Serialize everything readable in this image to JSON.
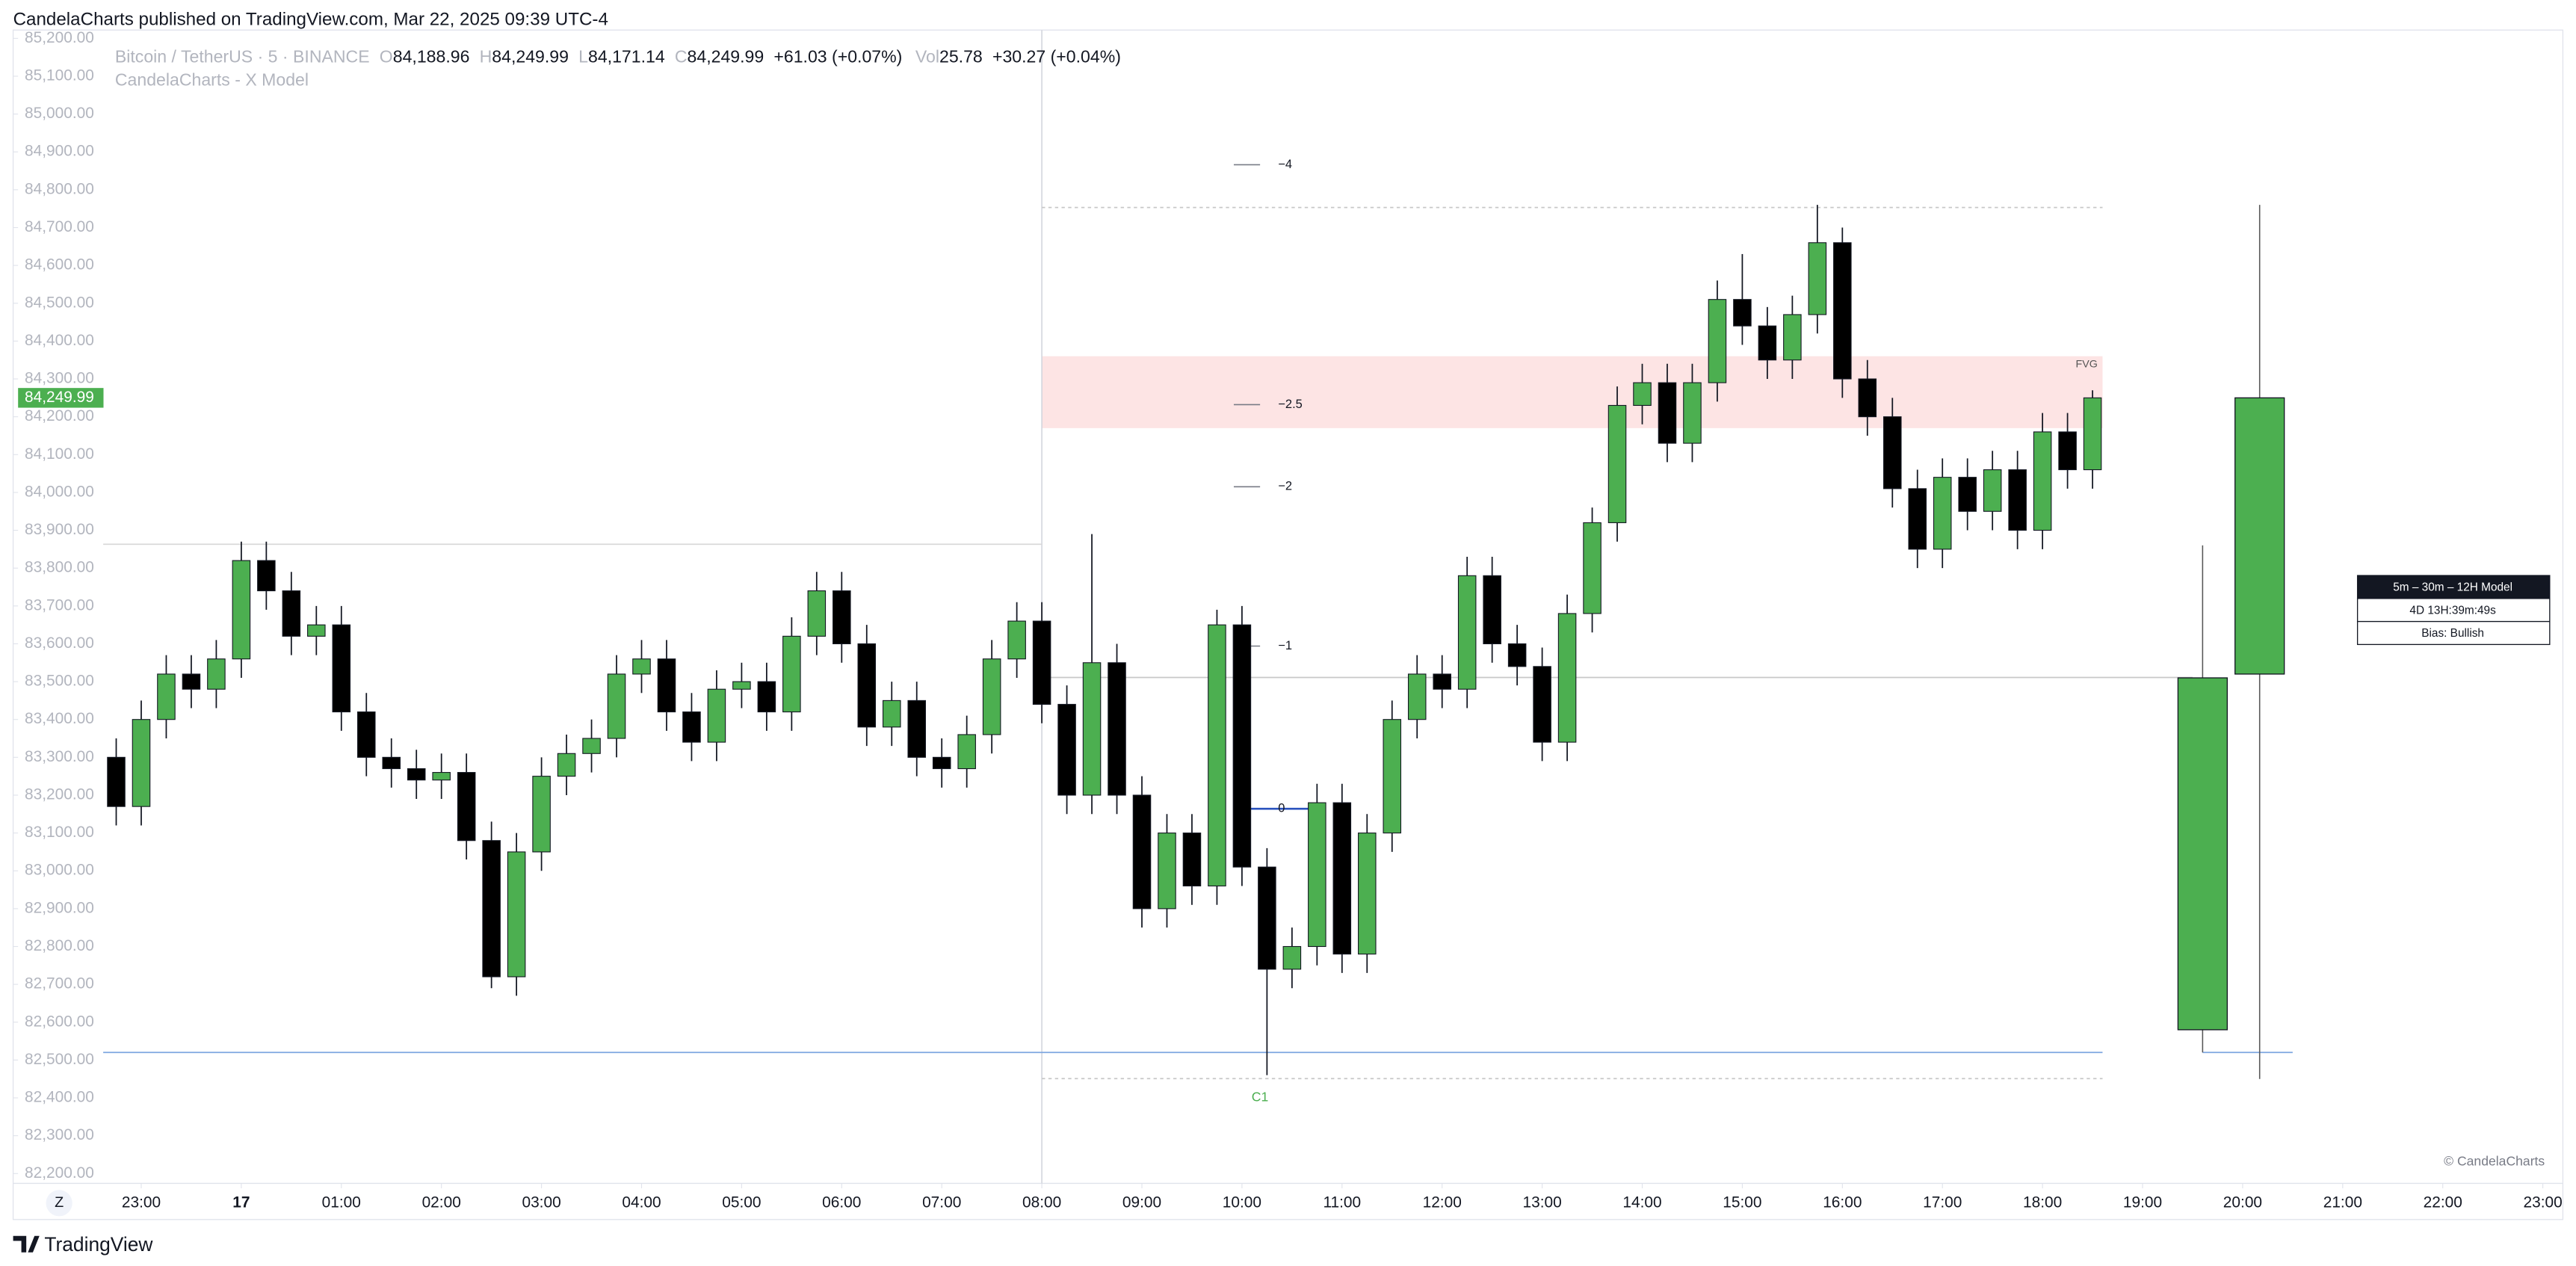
{
  "header": "CandelaCharts published on TradingView.com, Mar 22, 2025 09:39 UTC-4",
  "legend": {
    "symbol": "Bitcoin / TetherUS · 5 · BINANCE",
    "o_label": "O",
    "o": "84,188.96",
    "h_label": "H",
    "h": "84,249.99",
    "l_label": "L",
    "l": "84,171.14",
    "c_label": "C",
    "c": "84,249.99",
    "change": "+61.03 (+0.07%)",
    "vol_label": "Vol",
    "vol": "25.78",
    "vol_change": "+30.27 (+0.04%)",
    "indicator": "CandelaCharts - X Model"
  },
  "footer": {
    "brand": "TradingView",
    "zoom": "Z",
    "copyright": "© CandelaCharts"
  },
  "info_table": [
    "5m – 30m – 12H Model",
    "4D 13H:39m:49s",
    "Bias: Bullish"
  ],
  "chart_data": {
    "type": "candlestick",
    "xlim": [
      21.72,
      47.2
    ],
    "ylim": [
      82174,
      85222
    ],
    "xticks": [
      {
        "value": 23,
        "label": "23:00"
      },
      {
        "value": 24,
        "label": "17"
      },
      {
        "value": 25,
        "label": "01:00"
      },
      {
        "value": 26,
        "label": "02:00"
      },
      {
        "value": 27,
        "label": "03:00"
      },
      {
        "value": 28,
        "label": "04:00"
      },
      {
        "value": 29,
        "label": "05:00"
      },
      {
        "value": 30,
        "label": "06:00"
      },
      {
        "value": 31,
        "label": "07:00"
      },
      {
        "value": 32,
        "label": "08:00"
      },
      {
        "value": 33,
        "label": "09:00"
      },
      {
        "value": 34,
        "label": "10:00"
      },
      {
        "value": 35,
        "label": "11:00"
      },
      {
        "value": 36,
        "label": "12:00"
      },
      {
        "value": 37,
        "label": "13:00"
      },
      {
        "value": 38,
        "label": "14:00"
      },
      {
        "value": 39,
        "label": "15:00"
      },
      {
        "value": 40,
        "label": "16:00"
      },
      {
        "value": 41,
        "label": "17:00"
      },
      {
        "value": 42,
        "label": "18:00"
      },
      {
        "value": 43,
        "label": "19:00"
      },
      {
        "value": 44,
        "label": "20:00"
      },
      {
        "value": 45,
        "label": "21:00"
      },
      {
        "value": 46,
        "label": "22:00"
      },
      {
        "value": 47,
        "label": "23:00"
      }
    ],
    "yticks": [
      {
        "value": 85200,
        "label": "85,200.00"
      },
      {
        "value": 85100,
        "label": "85,100.00"
      },
      {
        "value": 85000,
        "label": "85,000.00"
      },
      {
        "value": 84900,
        "label": "84,900.00"
      },
      {
        "value": 84800,
        "label": "84,800.00"
      },
      {
        "value": 84700,
        "label": "84,700.00"
      },
      {
        "value": 84600,
        "label": "84,600.00"
      },
      {
        "value": 84500,
        "label": "84,500.00"
      },
      {
        "value": 84400,
        "label": "84,400.00"
      },
      {
        "value": 84300,
        "label": "84,300.00"
      },
      {
        "value": 84200,
        "label": "84,200.00"
      },
      {
        "value": 84100,
        "label": "84,100.00"
      },
      {
        "value": 84000,
        "label": "84,000.00"
      },
      {
        "value": 83900,
        "label": "83,900.00"
      },
      {
        "value": 83800,
        "label": "83,800.00"
      },
      {
        "value": 83700,
        "label": "83,700.00"
      },
      {
        "value": 83600,
        "label": "83,600.00"
      },
      {
        "value": 83500,
        "label": "83,500.00"
      },
      {
        "value": 83400,
        "label": "83,400.00"
      },
      {
        "value": 83300,
        "label": "83,300.00"
      },
      {
        "value": 83200,
        "label": "83,200.00"
      },
      {
        "value": 83100,
        "label": "83,100.00"
      },
      {
        "value": 83000,
        "label": "83,000.00"
      },
      {
        "value": 82900,
        "label": "82,900.00"
      },
      {
        "value": 82800,
        "label": "82,800.00"
      },
      {
        "value": 82700,
        "label": "82,700.00"
      },
      {
        "value": 82600,
        "label": "82,600.00"
      },
      {
        "value": 82500,
        "label": "82,500.00"
      },
      {
        "value": 82400,
        "label": "82,400.00"
      },
      {
        "value": 82300,
        "label": "82,300.00"
      },
      {
        "value": 82200,
        "label": "82,200.00"
      }
    ],
    "up_color": "#4caf50",
    "down_color": "#000000",
    "x": [
      22.75,
      23,
      23.25,
      23.5,
      23.75,
      24,
      24.25,
      24.5,
      24.75,
      25,
      25.25,
      25.5,
      25.75,
      26,
      26.25,
      26.5,
      26.75,
      27,
      27.25,
      27.5,
      27.75,
      28,
      28.25,
      28.5,
      28.75,
      29,
      29.25,
      29.5,
      29.75,
      30,
      30.25,
      30.5,
      30.75,
      31,
      31.25,
      31.5,
      31.75,
      32,
      32.25,
      32.5,
      32.75,
      33,
      33.25,
      33.5,
      33.75,
      34,
      34.25,
      34.5,
      34.75,
      35,
      35.25,
      35.5,
      35.75,
      36,
      36.25,
      36.5,
      36.75,
      37,
      37.25,
      37.5,
      37.75,
      38,
      38.25,
      38.5,
      38.75,
      39,
      39.25,
      39.5,
      39.75,
      40,
      40.25,
      40.5,
      40.75,
      41,
      41.25,
      41.5,
      41.75,
      42,
      42.25,
      42.5
    ],
    "open": [
      83300,
      83170,
      83400,
      83520,
      83480,
      83560,
      83820,
      83740,
      83620,
      83650,
      83420,
      83300,
      83270,
      83240,
      83260,
      83080,
      82720,
      83050,
      83250,
      83310,
      83350,
      83520,
      83560,
      83420,
      83340,
      83480,
      83500,
      83420,
      83620,
      83740,
      83600,
      83380,
      83450,
      83300,
      83270,
      83360,
      83560,
      83660,
      83440,
      83200,
      83550,
      83200,
      82900,
      83100,
      82960,
      83650,
      83010,
      82740,
      82800,
      83180,
      82780,
      83100,
      83400,
      83520,
      83480,
      83780,
      83600,
      83540,
      83340,
      83680,
      83920,
      84230,
      84290,
      84130,
      84290,
      84510,
      84440,
      84350,
      84470,
      84660,
      84300,
      84200,
      84010,
      83850,
      84040,
      83950,
      84060,
      83900,
      84160,
      84060
    ],
    "high": [
      83350,
      83450,
      83570,
      83570,
      83610,
      83870,
      83870,
      83790,
      83700,
      83700,
      83470,
      83350,
      83320,
      83310,
      83310,
      83130,
      83100,
      83300,
      83360,
      83400,
      83570,
      83610,
      83610,
      83470,
      83530,
      83550,
      83550,
      83670,
      83790,
      83790,
      83650,
      83500,
      83500,
      83350,
      83410,
      83610,
      83710,
      83710,
      83490,
      83890,
      83600,
      83250,
      83150,
      83150,
      83690,
      83700,
      83060,
      82850,
      83230,
      83230,
      83150,
      83450,
      83570,
      83570,
      83830,
      83830,
      83650,
      83590,
      83730,
      83960,
      84280,
      84340,
      84340,
      84340,
      84560,
      84630,
      84490,
      84520,
      84760,
      84700,
      84350,
      84250,
      84060,
      84090,
      84090,
      84110,
      84110,
      84210,
      84210,
      84270
    ],
    "low": [
      83120,
      83120,
      83350,
      83430,
      83430,
      83510,
      83690,
      83570,
      83570,
      83370,
      83250,
      83220,
      83190,
      83190,
      83030,
      82690,
      82670,
      83000,
      83200,
      83260,
      83300,
      83470,
      83370,
      83290,
      83290,
      83430,
      83370,
      83370,
      83570,
      83550,
      83330,
      83330,
      83250,
      83220,
      83220,
      83310,
      83510,
      83390,
      83150,
      83150,
      83150,
      82850,
      82850,
      82910,
      82910,
      82960,
      82460,
      82690,
      82750,
      82730,
      82730,
      83050,
      83350,
      83430,
      83430,
      83550,
      83490,
      83290,
      83290,
      83630,
      83870,
      84180,
      84080,
      84080,
      84240,
      84390,
      84300,
      84300,
      84420,
      84250,
      84150,
      83960,
      83800,
      83800,
      83900,
      83900,
      83850,
      83850,
      84010,
      84010
    ],
    "close": [
      83170,
      83400,
      83520,
      83480,
      83560,
      83820,
      83740,
      83620,
      83650,
      83420,
      83300,
      83270,
      83240,
      83260,
      83080,
      82720,
      83050,
      83250,
      83310,
      83350,
      83520,
      83560,
      83420,
      83340,
      83480,
      83500,
      83420,
      83620,
      83740,
      83600,
      83380,
      83450,
      83300,
      83270,
      83360,
      83560,
      83660,
      83440,
      83200,
      83550,
      83200,
      82900,
      83100,
      82960,
      83650,
      83010,
      82740,
      82800,
      83180,
      82780,
      83100,
      83400,
      83520,
      83480,
      83780,
      83600,
      83540,
      83340,
      83680,
      83920,
      84230,
      84290,
      84130,
      84290,
      84510,
      84440,
      84350,
      84470,
      84660,
      84300,
      84200,
      84010,
      83850,
      84040,
      83950,
      84060,
      83900,
      84160,
      84060,
      84250
    ],
    "last_price": {
      "value": 84249.99,
      "label": "84,249.99"
    },
    "htf_candles": {
      "color": "#4caf50",
      "x": [
        43.6,
        44.17
      ],
      "open": [
        82580,
        83520
      ],
      "high": [
        83860,
        84760
      ],
      "low": [
        82520,
        82450
      ],
      "close": [
        83510,
        84250
      ]
    },
    "fvg": {
      "label": "FVG",
      "top": 84360,
      "bottom": 84170,
      "start": 32,
      "end": 42.6,
      "color": "#fde4e4"
    },
    "levels": [
      {
        "label": "−4",
        "value": 84866
      },
      {
        "label": "−2.5",
        "value": 84232
      },
      {
        "label": "−2",
        "value": 84015
      },
      {
        "label": "−1",
        "value": 83594
      },
      {
        "label": "0",
        "value": 83164
      }
    ],
    "hlines": [
      {
        "value": 83863,
        "start": 22.62,
        "end": 32,
        "color": "#d9d9d9",
        "dashed": false
      },
      {
        "value": 83511,
        "start": 32,
        "end": 43.5,
        "color": "#c8c8c8",
        "dashed": false
      },
      {
        "value": 82520,
        "start": 22.62,
        "end": 42.6,
        "color": "#7ea6e0",
        "dashed": false
      },
      {
        "value": 82520,
        "start": 43.6,
        "end": 44.5,
        "color": "#7ea6e0",
        "dashed": false
      },
      {
        "value": 84753,
        "start": 32,
        "end": 42.6,
        "color": "#c8c8c8",
        "dashed": true
      },
      {
        "value": 82451,
        "start": 32,
        "end": 42.6,
        "color": "#c8c8c8",
        "dashed": true
      }
    ],
    "session_start": 32,
    "c1": {
      "label": "C1",
      "x": 34.18,
      "y": 82400
    }
  }
}
